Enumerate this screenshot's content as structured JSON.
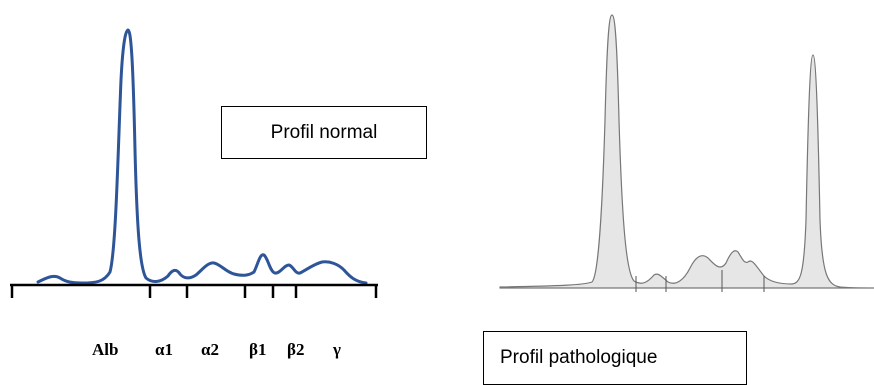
{
  "normal_profile": {
    "label": "Profil normal",
    "curve_color": "#2e5597",
    "fraction_labels": [
      "Alb",
      "α1",
      "α2",
      "β1",
      "β2",
      "γ"
    ]
  },
  "pathologic_profile": {
    "label": "Profil pathologique",
    "curve_color": "#777777",
    "fill_color": "#e6e6e6"
  }
}
